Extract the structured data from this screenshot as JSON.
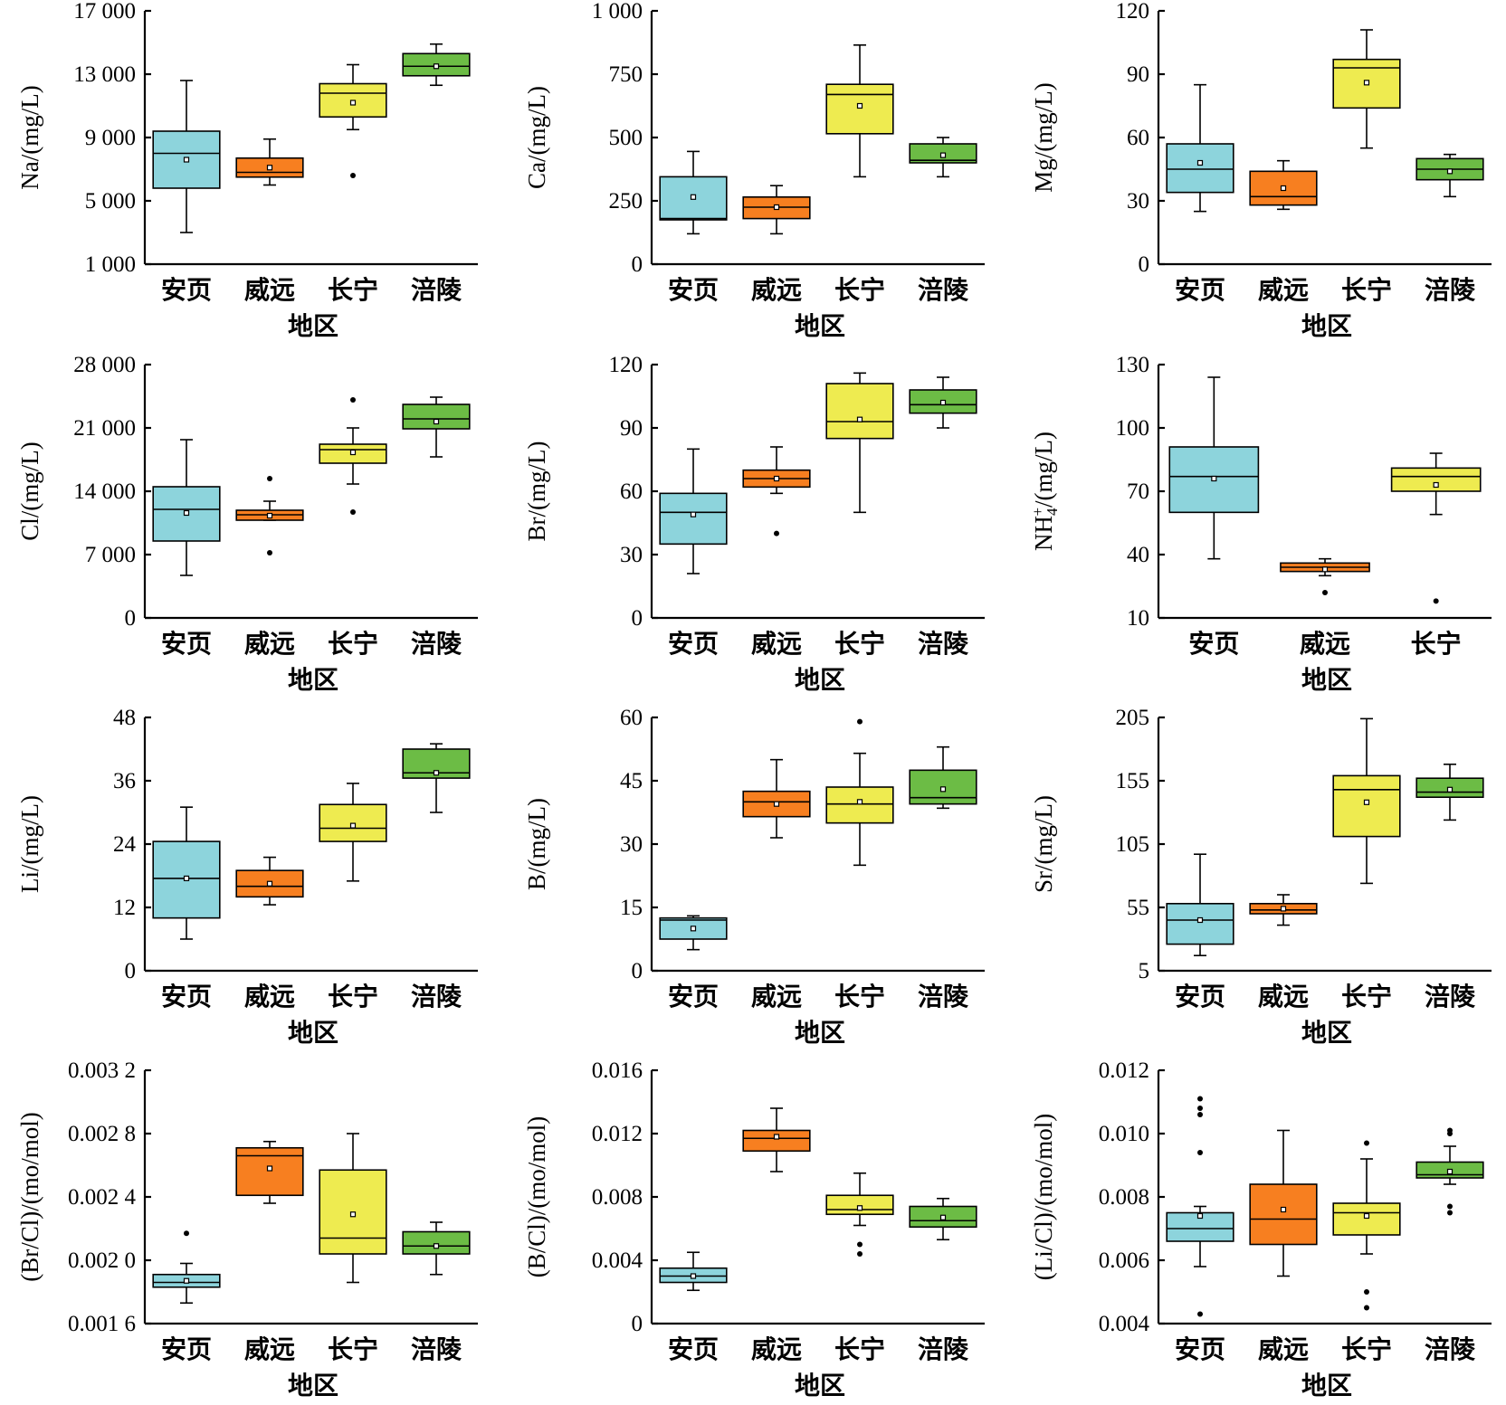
{
  "colors": {
    "安页": "#8DD4DC",
    "威远": "#F77F20",
    "长宁": "#EEEB50",
    "涪陵": "#6CBC45"
  },
  "chart_data": [
    {
      "type": "box",
      "xlabel": "地区",
      "ylabel": "Na/(mg/L)",
      "ylim": [
        1000,
        17000
      ],
      "yticks": [
        "1 000",
        "5 000",
        "9 000",
        "13 000",
        "17 000"
      ],
      "categories": [
        "安页",
        "威远",
        "长宁",
        "涪陵"
      ],
      "boxes": [
        {
          "min": 3000,
          "q1": 5800,
          "median": 8000,
          "q3": 9400,
          "max": 12600,
          "mean": 7600,
          "outliers": []
        },
        {
          "min": 6000,
          "q1": 6500,
          "median": 6800,
          "q3": 7700,
          "max": 8900,
          "mean": 7100,
          "outliers": []
        },
        {
          "min": 9500,
          "q1": 10300,
          "median": 11800,
          "q3": 12400,
          "max": 13600,
          "mean": 11200,
          "outliers": [
            6600
          ]
        },
        {
          "min": 12300,
          "q1": 12900,
          "median": 13500,
          "q3": 14300,
          "max": 14900,
          "mean": 13500,
          "outliers": []
        }
      ]
    },
    {
      "type": "box",
      "xlabel": "地区",
      "ylabel": "Ca/(mg/L)",
      "ylim": [
        0,
        1000
      ],
      "yticks": [
        "0",
        "250",
        "500",
        "750",
        "1 000"
      ],
      "categories": [
        "安页",
        "威远",
        "长宁",
        "涪陵"
      ],
      "boxes": [
        {
          "min": 120,
          "q1": 175,
          "median": 180,
          "q3": 345,
          "max": 445,
          "mean": 265,
          "outliers": []
        },
        {
          "min": 120,
          "q1": 180,
          "median": 225,
          "q3": 265,
          "max": 310,
          "mean": 225,
          "outliers": []
        },
        {
          "min": 345,
          "q1": 515,
          "median": 670,
          "q3": 710,
          "max": 865,
          "mean": 625,
          "outliers": []
        },
        {
          "min": 345,
          "q1": 400,
          "median": 410,
          "q3": 475,
          "max": 500,
          "mean": 430,
          "outliers": []
        }
      ]
    },
    {
      "type": "box",
      "xlabel": "地区",
      "ylabel": "Mg/(mg/L)",
      "ylim": [
        0,
        120
      ],
      "yticks": [
        "0",
        "30",
        "60",
        "90",
        "120"
      ],
      "categories": [
        "安页",
        "威远",
        "长宁",
        "涪陵"
      ],
      "boxes": [
        {
          "min": 25,
          "q1": 34,
          "median": 45,
          "q3": 57,
          "max": 85,
          "mean": 48,
          "outliers": []
        },
        {
          "min": 26,
          "q1": 28,
          "median": 32,
          "q3": 44,
          "max": 49,
          "mean": 36,
          "outliers": []
        },
        {
          "min": 55,
          "q1": 74,
          "median": 93,
          "q3": 97,
          "max": 111,
          "mean": 86,
          "outliers": []
        },
        {
          "min": 32,
          "q1": 40,
          "median": 45,
          "q3": 50,
          "max": 52,
          "mean": 44,
          "outliers": []
        }
      ]
    },
    {
      "type": "box",
      "xlabel": "地区",
      "ylabel": "Cl/(mg/L)",
      "ylim": [
        0,
        28000
      ],
      "yticks": [
        "0",
        "7 000",
        "14 000",
        "21 000",
        "28 000"
      ],
      "categories": [
        "安页",
        "威远",
        "长宁",
        "涪陵"
      ],
      "boxes": [
        {
          "min": 4700,
          "q1": 8500,
          "median": 12000,
          "q3": 14500,
          "max": 19700,
          "mean": 11600,
          "outliers": []
        },
        {
          "min": 10800,
          "q1": 10800,
          "median": 11400,
          "q3": 11900,
          "max": 12900,
          "mean": 11300,
          "outliers": [
            7200,
            15400
          ]
        },
        {
          "min": 14800,
          "q1": 17100,
          "median": 18600,
          "q3": 19200,
          "max": 21000,
          "mean": 18300,
          "outliers": [
            11700,
            24100
          ]
        },
        {
          "min": 17800,
          "q1": 20900,
          "median": 22000,
          "q3": 23600,
          "max": 24400,
          "mean": 21700,
          "outliers": []
        }
      ]
    },
    {
      "type": "box",
      "xlabel": "地区",
      "ylabel": "Br/(mg/L)",
      "ylim": [
        0,
        120
      ],
      "yticks": [
        "0",
        "30",
        "60",
        "90",
        "120"
      ],
      "categories": [
        "安页",
        "威远",
        "长宁",
        "涪陵"
      ],
      "boxes": [
        {
          "min": 21,
          "q1": 35,
          "median": 50,
          "q3": 59,
          "max": 80,
          "mean": 49,
          "outliers": []
        },
        {
          "min": 59,
          "q1": 62,
          "median": 66,
          "q3": 70,
          "max": 81,
          "mean": 66,
          "outliers": [
            40
          ]
        },
        {
          "min": 50,
          "q1": 85,
          "median": 93,
          "q3": 111,
          "max": 116,
          "mean": 94,
          "outliers": []
        },
        {
          "min": 90,
          "q1": 97,
          "median": 101,
          "q3": 108,
          "max": 114,
          "mean": 102,
          "outliers": []
        }
      ]
    },
    {
      "type": "box",
      "xlabel": "地区",
      "ylabel": "NH4+/(mg/L)",
      "ylim": [
        10,
        130
      ],
      "yticks": [
        "10",
        "40",
        "70",
        "100",
        "130"
      ],
      "categories": [
        "安页",
        "威远",
        "长宁"
      ],
      "boxes": [
        {
          "min": 38,
          "q1": 60,
          "median": 77,
          "q3": 91,
          "max": 124,
          "mean": 76,
          "outliers": []
        },
        {
          "min": 30,
          "q1": 32,
          "median": 34,
          "q3": 36,
          "max": 38,
          "mean": 33,
          "outliers": [
            22
          ]
        },
        {
          "min": 59,
          "q1": 70,
          "median": 77,
          "q3": 81,
          "max": 88,
          "mean": 73,
          "outliers": [
            18
          ]
        }
      ]
    },
    {
      "type": "box",
      "xlabel": "地区",
      "ylabel": "Li/(mg/L)",
      "ylim": [
        0,
        48
      ],
      "yticks": [
        "0",
        "12",
        "24",
        "36",
        "48"
      ],
      "categories": [
        "安页",
        "威远",
        "长宁",
        "涪陵"
      ],
      "boxes": [
        {
          "min": 6,
          "q1": 10,
          "median": 17.5,
          "q3": 24.5,
          "max": 31,
          "mean": 17.5,
          "outliers": []
        },
        {
          "min": 12.5,
          "q1": 14,
          "median": 16,
          "q3": 19,
          "max": 21.5,
          "mean": 16.5,
          "outliers": []
        },
        {
          "min": 17,
          "q1": 24.5,
          "median": 27,
          "q3": 31.5,
          "max": 35.5,
          "mean": 27.5,
          "outliers": []
        },
        {
          "min": 30,
          "q1": 36.5,
          "median": 37.5,
          "q3": 42,
          "max": 43,
          "mean": 37.5,
          "outliers": []
        }
      ]
    },
    {
      "type": "box",
      "xlabel": "地区",
      "ylabel": "B/(mg/L)",
      "ylim": [
        0,
        60
      ],
      "yticks": [
        "0",
        "15",
        "30",
        "45",
        "60"
      ],
      "categories": [
        "安页",
        "威远",
        "长宁",
        "涪陵"
      ],
      "boxes": [
        {
          "min": 5,
          "q1": 7.5,
          "median": 12,
          "q3": 12.5,
          "max": 13,
          "mean": 10,
          "outliers": []
        },
        {
          "min": 31.5,
          "q1": 36.5,
          "median": 40,
          "q3": 42.5,
          "max": 50,
          "mean": 39.5,
          "outliers": []
        },
        {
          "min": 25,
          "q1": 35,
          "median": 39.5,
          "q3": 43.5,
          "max": 51.5,
          "mean": 40,
          "outliers": [
            59
          ]
        },
        {
          "min": 38.5,
          "q1": 39.5,
          "median": 41,
          "q3": 47.5,
          "max": 53,
          "mean": 43,
          "outliers": []
        }
      ]
    },
    {
      "type": "box",
      "xlabel": "地区",
      "ylabel": "Sr/(mg/L)",
      "ylim": [
        5,
        205
      ],
      "yticks": [
        "5",
        "55",
        "105",
        "155",
        "205"
      ],
      "categories": [
        "安页",
        "威远",
        "长宁",
        "涪陵"
      ],
      "boxes": [
        {
          "min": 17,
          "q1": 26,
          "median": 45,
          "q3": 58,
          "max": 97,
          "mean": 45,
          "outliers": []
        },
        {
          "min": 41,
          "q1": 50,
          "median": 53,
          "q3": 58,
          "max": 65,
          "mean": 54,
          "outliers": []
        },
        {
          "min": 74,
          "q1": 111,
          "median": 148,
          "q3": 159,
          "max": 204,
          "mean": 138,
          "outliers": []
        },
        {
          "min": 124,
          "q1": 142,
          "median": 146,
          "q3": 157,
          "max": 168,
          "mean": 148,
          "outliers": []
        }
      ]
    },
    {
      "type": "box",
      "xlabel": "地区",
      "ylabel": "(Br/Cl)/(mo/mol)",
      "ylim": [
        0.0016,
        0.0032
      ],
      "yticks": [
        "0.001 6",
        "0.002 0",
        "0.002 4",
        "0.002 8",
        "0.003 2"
      ],
      "categories": [
        "安页",
        "威远",
        "长宁",
        "涪陵"
      ],
      "boxes": [
        {
          "min": 0.00173,
          "q1": 0.00183,
          "median": 0.00186,
          "q3": 0.00191,
          "max": 0.00198,
          "mean": 0.00187,
          "outliers": [
            0.00217
          ]
        },
        {
          "min": 0.00236,
          "q1": 0.00241,
          "median": 0.00266,
          "q3": 0.00271,
          "max": 0.00275,
          "mean": 0.00258,
          "outliers": []
        },
        {
          "min": 0.00186,
          "q1": 0.00204,
          "median": 0.00214,
          "q3": 0.00257,
          "max": 0.0028,
          "mean": 0.00229,
          "outliers": []
        },
        {
          "min": 0.00191,
          "q1": 0.00204,
          "median": 0.00209,
          "q3": 0.00218,
          "max": 0.00224,
          "mean": 0.00209,
          "outliers": []
        }
      ]
    },
    {
      "type": "box",
      "xlabel": "地区",
      "ylabel": "(B/Cl)/(mo/mol)",
      "ylim": [
        0,
        0.016
      ],
      "yticks": [
        "0",
        "0.004",
        "0.008",
        "0.012",
        "0.016"
      ],
      "categories": [
        "安页",
        "威远",
        "长宁",
        "涪陵"
      ],
      "boxes": [
        {
          "min": 0.0021,
          "q1": 0.0026,
          "median": 0.003,
          "q3": 0.0035,
          "max": 0.0045,
          "mean": 0.003,
          "outliers": []
        },
        {
          "min": 0.0096,
          "q1": 0.0109,
          "median": 0.0117,
          "q3": 0.0122,
          "max": 0.0136,
          "mean": 0.0118,
          "outliers": []
        },
        {
          "min": 0.0062,
          "q1": 0.0069,
          "median": 0.0072,
          "q3": 0.0081,
          "max": 0.0095,
          "mean": 0.0073,
          "outliers": [
            0.0044,
            0.005
          ]
        },
        {
          "min": 0.0053,
          "q1": 0.0061,
          "median": 0.0065,
          "q3": 0.0074,
          "max": 0.0079,
          "mean": 0.0067,
          "outliers": []
        }
      ]
    },
    {
      "type": "box",
      "xlabel": "地区",
      "ylabel": "(Li/Cl)/(mo/mol)",
      "ylim": [
        0.004,
        0.012
      ],
      "yticks": [
        "0.004",
        "0.006",
        "0.008",
        "0.010",
        "0.012"
      ],
      "categories": [
        "安页",
        "威远",
        "长宁",
        "涪陵"
      ],
      "boxes": [
        {
          "min": 0.0058,
          "q1": 0.0066,
          "median": 0.007,
          "q3": 0.0075,
          "max": 0.0077,
          "mean": 0.0074,
          "outliers": [
            0.0043,
            0.0094,
            0.0106,
            0.0108,
            0.0111
          ]
        },
        {
          "min": 0.0055,
          "q1": 0.0065,
          "median": 0.0073,
          "q3": 0.0084,
          "max": 0.0101,
          "mean": 0.0076,
          "outliers": []
        },
        {
          "min": 0.0062,
          "q1": 0.0068,
          "median": 0.0075,
          "q3": 0.0078,
          "max": 0.0092,
          "mean": 0.0074,
          "outliers": [
            0.0045,
            0.005,
            0.0097
          ]
        },
        {
          "min": 0.0084,
          "q1": 0.0086,
          "median": 0.0087,
          "q3": 0.0091,
          "max": 0.0096,
          "mean": 0.0088,
          "outliers": [
            0.0075,
            0.0077,
            0.01,
            0.0101
          ]
        }
      ]
    }
  ]
}
